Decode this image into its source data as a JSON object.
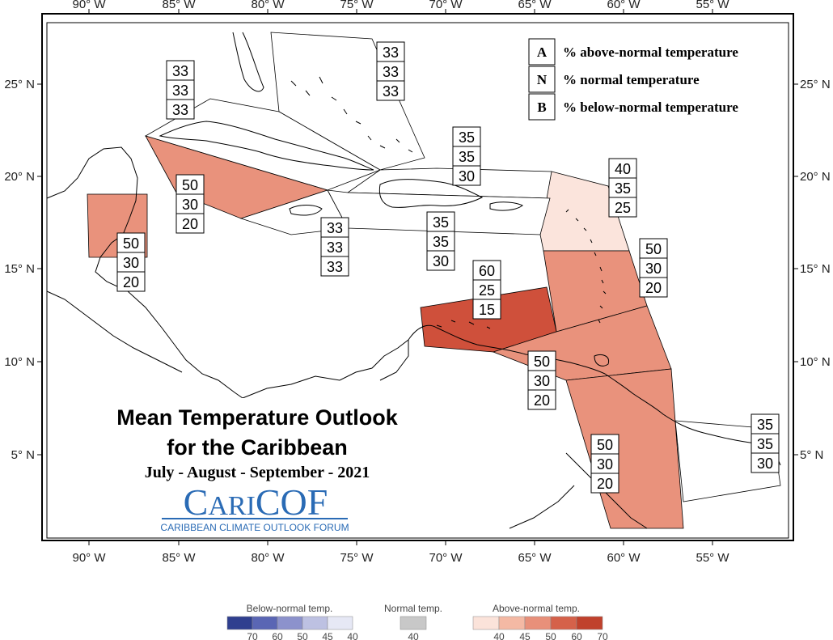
{
  "axes": {
    "lon_labels": [
      "90° W",
      "85° W",
      "80° W",
      "75° W",
      "70° W",
      "65° W",
      "60° W",
      "55° W"
    ],
    "lat_labels_left": [
      "25° N",
      "20° N",
      "15° N",
      "10° N",
      "5° N"
    ],
    "lat_labels_right": [
      "25° N",
      "20° N",
      "15° N",
      "10° N",
      "5° N"
    ]
  },
  "key": {
    "rows": [
      {
        "letter": "A",
        "text": "% above-normal temperature"
      },
      {
        "letter": "N",
        "text": "% normal temperature"
      },
      {
        "letter": "B",
        "text": "% below-normal temperature"
      }
    ]
  },
  "regions": [
    {
      "id": "bahamas",
      "values": [
        "33",
        "33",
        "33"
      ],
      "category": "normal"
    },
    {
      "id": "cuba",
      "values": [
        "33",
        "33",
        "33"
      ],
      "category": "normal"
    },
    {
      "id": "turks-caicos",
      "values": [
        "35",
        "35",
        "30"
      ],
      "category": "normal"
    },
    {
      "id": "northern-leewards",
      "values": [
        "40",
        "35",
        "25"
      ],
      "category": "above-40"
    },
    {
      "id": "cayman",
      "values": [
        "50",
        "30",
        "20"
      ],
      "category": "above-50"
    },
    {
      "id": "belize",
      "values": [
        "50",
        "30",
        "20"
      ],
      "category": "above-50"
    },
    {
      "id": "jamaica",
      "values": [
        "33",
        "33",
        "33"
      ],
      "category": "normal"
    },
    {
      "id": "hispaniola-pr",
      "values": [
        "35",
        "35",
        "30"
      ],
      "category": "normal"
    },
    {
      "id": "windwards",
      "values": [
        "50",
        "30",
        "20"
      ],
      "category": "above-50"
    },
    {
      "id": "abc-islands",
      "values": [
        "60",
        "25",
        "15"
      ],
      "category": "above-60"
    },
    {
      "id": "trinidad",
      "values": [
        "50",
        "30",
        "20"
      ],
      "category": "above-50"
    },
    {
      "id": "guyana",
      "values": [
        "50",
        "30",
        "20"
      ],
      "category": "above-50"
    },
    {
      "id": "french-guiana",
      "values": [
        "35",
        "35",
        "30"
      ],
      "category": "normal"
    }
  ],
  "title": {
    "line1": "Mean Temperature Outlook",
    "line2": "for the Caribbean",
    "period": "July - August - September - 2021"
  },
  "logo": {
    "wordmark": "CARICOF",
    "tagline": "CARIBBEAN CLIMATE OUTLOOK FORUM"
  },
  "colorbar": {
    "below": {
      "label": "Below-normal temp.",
      "ticks": [
        "70",
        "60",
        "50",
        "45",
        "40"
      ],
      "colors": [
        "#2f3f8f",
        "#5a66b4",
        "#8c92cc",
        "#bdc1e2",
        "#e6e8f5"
      ]
    },
    "normal": {
      "label": "Normal temp.",
      "ticks": [
        "40"
      ],
      "colors": [
        "#c8c8c8"
      ]
    },
    "above": {
      "label": "Above-normal temp.",
      "ticks": [
        "40",
        "45",
        "50",
        "60",
        "70"
      ],
      "colors": [
        "#fbe3da",
        "#f4b9a4",
        "#e8907a",
        "#d5614a",
        "#c0412c"
      ]
    }
  },
  "colors": {
    "above-40": "#fbe4dc",
    "above-50": "#e9927c",
    "above-60": "#cf503b",
    "normal": "#ffffff",
    "land": "#ffffff",
    "border": "#000000",
    "logo_blue": "#2a6bb5"
  }
}
